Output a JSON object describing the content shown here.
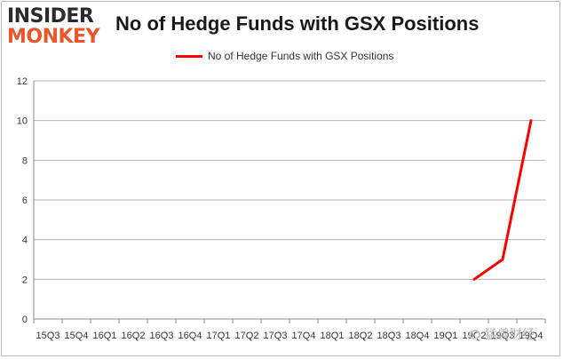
{
  "logo": {
    "line1": "INSIDER",
    "line2": "MONKEY"
  },
  "watermark": {
    "text": "猛兽财经"
  },
  "chart_data": {
    "type": "line",
    "title": "No of Hedge Funds with GSX Positions",
    "xlabel": "",
    "ylabel": "",
    "categories": [
      "15Q3",
      "15Q4",
      "16Q1",
      "16Q2",
      "16Q3",
      "16Q4",
      "17Q1",
      "17Q2",
      "17Q3",
      "17Q4",
      "18Q1",
      "18Q2",
      "18Q3",
      "18Q4",
      "19Q1",
      "19Q2",
      "19Q3",
      "19Q4"
    ],
    "series": [
      {
        "name": "No of Hedge Funds with GSX Positions",
        "color": "#ff0000",
        "values": [
          null,
          null,
          null,
          null,
          null,
          null,
          null,
          null,
          null,
          null,
          null,
          null,
          null,
          null,
          null,
          2,
          3,
          10
        ]
      }
    ],
    "ylim": [
      0,
      12
    ],
    "yticks": [
      0,
      2,
      4,
      6,
      8,
      10,
      12
    ],
    "grid": true,
    "legend": "top-center"
  }
}
